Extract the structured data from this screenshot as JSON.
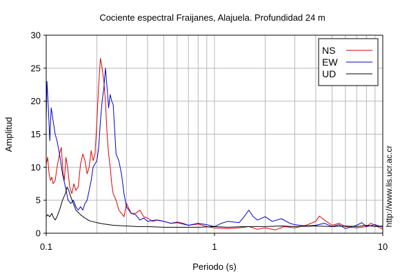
{
  "chart_data": {
    "type": "line",
    "title": "Cociente espectral Fraijanes, Alajuela. Profundidad 24 m",
    "xlabel": "Periodo (s)",
    "ylabel": "Amplitud",
    "xscale": "log",
    "xlim": [
      0.1,
      10
    ],
    "ylim": [
      0,
      30
    ],
    "x_ticks": [
      0.1,
      1,
      10
    ],
    "x_tick_labels": [
      "0.1",
      "1",
      "10"
    ],
    "y_ticks": [
      0,
      5,
      10,
      15,
      20,
      25,
      30
    ],
    "y_tick_labels": [
      "0",
      "5",
      "10",
      "15",
      "20",
      "25",
      "30"
    ],
    "grid": true,
    "legend_position": "top-right",
    "side_text": "http://www.lis.ucr.ac.cr",
    "series": [
      {
        "name": "NS",
        "color": "#dd0000",
        "x": [
          0.1,
          0.102,
          0.104,
          0.106,
          0.108,
          0.11,
          0.113,
          0.116,
          0.12,
          0.123,
          0.126,
          0.128,
          0.131,
          0.134,
          0.138,
          0.142,
          0.146,
          0.15,
          0.155,
          0.16,
          0.165,
          0.17,
          0.175,
          0.18,
          0.185,
          0.19,
          0.195,
          0.2,
          0.205,
          0.21,
          0.215,
          0.22,
          0.225,
          0.23,
          0.235,
          0.24,
          0.245,
          0.25,
          0.26,
          0.27,
          0.28,
          0.29,
          0.3,
          0.32,
          0.34,
          0.36,
          0.38,
          0.4,
          0.43,
          0.46,
          0.5,
          0.55,
          0.6,
          0.65,
          0.7,
          0.8,
          0.9,
          1.0,
          1.2,
          1.4,
          1.6,
          1.8,
          2.0,
          2.3,
          2.6,
          3.0,
          3.5,
          4.0,
          4.2,
          4.5,
          5.0,
          5.5,
          6.0,
          7.0,
          8.0,
          8.5,
          9.0,
          10.0
        ],
        "y": [
          10.5,
          11.5,
          9.0,
          8.0,
          8.5,
          7.5,
          8.0,
          10.0,
          12.0,
          13.0,
          9.0,
          8.0,
          11.5,
          10.0,
          7.0,
          6.0,
          7.5,
          6.5,
          7.0,
          10.5,
          12.0,
          11.0,
          9.0,
          10.0,
          12.5,
          11.0,
          12.0,
          17.0,
          22.5,
          26.5,
          25.0,
          23.0,
          20.0,
          15.0,
          12.0,
          10.0,
          7.5,
          6.0,
          5.0,
          3.5,
          3.0,
          2.5,
          4.5,
          3.0,
          3.0,
          3.5,
          2.5,
          2.3,
          1.8,
          2.0,
          1.8,
          1.5,
          1.7,
          1.5,
          1.2,
          1.4,
          1.0,
          0.8,
          0.7,
          0.8,
          1.0,
          0.6,
          0.8,
          0.5,
          1.0,
          0.8,
          1.2,
          1.8,
          2.6,
          2.0,
          1.2,
          1.5,
          1.0,
          0.8,
          1.0,
          1.5,
          1.2,
          0.6
        ]
      },
      {
        "name": "EW",
        "color": "#0000cc",
        "x": [
          0.1,
          0.101,
          0.102,
          0.103,
          0.105,
          0.107,
          0.11,
          0.113,
          0.116,
          0.12,
          0.125,
          0.13,
          0.135,
          0.14,
          0.145,
          0.15,
          0.155,
          0.16,
          0.165,
          0.17,
          0.175,
          0.18,
          0.185,
          0.19,
          0.2,
          0.205,
          0.21,
          0.215,
          0.22,
          0.225,
          0.23,
          0.235,
          0.24,
          0.245,
          0.25,
          0.26,
          0.27,
          0.28,
          0.29,
          0.3,
          0.32,
          0.34,
          0.36,
          0.38,
          0.4,
          0.45,
          0.5,
          0.55,
          0.6,
          0.7,
          0.8,
          0.9,
          1.0,
          1.1,
          1.2,
          1.4,
          1.5,
          1.6,
          1.7,
          1.8,
          2.0,
          2.2,
          2.5,
          2.8,
          3.0,
          3.5,
          4.0,
          4.5,
          5.0,
          5.5,
          6.0,
          7.0,
          7.5,
          8.0,
          9.0,
          10.0
        ],
        "y": [
          17.0,
          23.0,
          21.0,
          19.0,
          14.0,
          19.0,
          17.0,
          15.0,
          14.0,
          12.0,
          9.0,
          7.0,
          5.0,
          4.5,
          5.0,
          4.0,
          3.5,
          4.0,
          3.5,
          4.5,
          5.0,
          6.5,
          8.0,
          10.0,
          11.0,
          13.0,
          17.0,
          20.0,
          22.0,
          25.0,
          22.0,
          19.0,
          21.0,
          20.0,
          19.5,
          12.0,
          11.0,
          9.0,
          6.0,
          4.0,
          3.0,
          2.8,
          2.0,
          2.3,
          1.8,
          2.0,
          1.8,
          1.5,
          1.6,
          1.2,
          1.5,
          1.3,
          1.0,
          1.5,
          1.8,
          1.6,
          2.5,
          3.5,
          2.5,
          2.0,
          2.5,
          1.8,
          2.2,
          1.5,
          1.3,
          1.1,
          1.2,
          1.5,
          1.0,
          1.3,
          0.7,
          1.2,
          1.6,
          1.0,
          1.3,
          0.9
        ]
      },
      {
        "name": "UD",
        "color": "#000000",
        "x": [
          0.1,
          0.102,
          0.105,
          0.108,
          0.11,
          0.113,
          0.116,
          0.12,
          0.125,
          0.13,
          0.133,
          0.136,
          0.14,
          0.145,
          0.15,
          0.16,
          0.17,
          0.18,
          0.2,
          0.22,
          0.25,
          0.3,
          0.35,
          0.4,
          0.5,
          0.6,
          0.8,
          1.0,
          1.2,
          1.5,
          2.0,
          2.5,
          3.0,
          4.0,
          5.0,
          6.0,
          7.0,
          8.0,
          9.0,
          10.0
        ],
        "y": [
          2.5,
          2.8,
          2.5,
          3.0,
          2.5,
          2.0,
          2.5,
          3.5,
          5.0,
          6.0,
          7.0,
          6.5,
          5.5,
          4.5,
          3.5,
          2.8,
          2.3,
          1.9,
          1.6,
          1.4,
          1.2,
          1.1,
          1.0,
          1.0,
          0.9,
          0.9,
          0.9,
          1.0,
          0.9,
          1.0,
          1.0,
          1.1,
          1.0,
          1.1,
          1.0,
          1.1,
          1.0,
          1.2,
          1.0,
          1.1
        ]
      }
    ]
  }
}
